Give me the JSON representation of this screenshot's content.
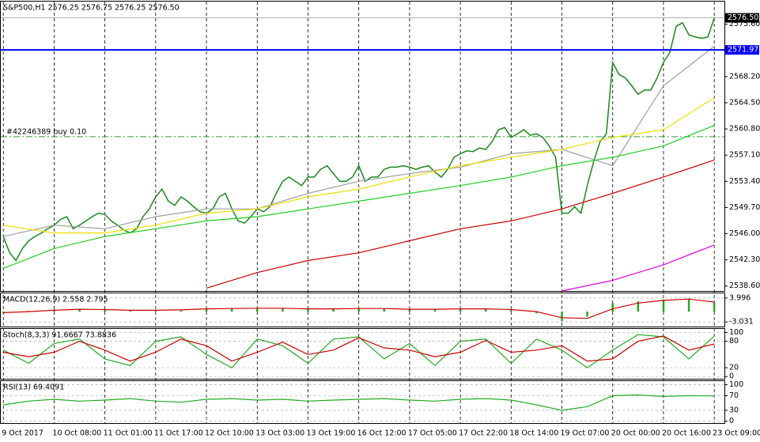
{
  "chart_data": [
    {
      "type": "line",
      "title": "S&P500,H1  2576.25 2576.75 2576.25 2576.50",
      "xlim": [
        -0.4,
        113.6
      ],
      "ylim": [
        2537.9,
        2578.8
      ],
      "xticks": [
        {
          "value": 0,
          "label": "9 Oct 2017"
        },
        {
          "value": 8,
          "label": "10 Oct 08:00"
        },
        {
          "value": 16,
          "label": "11 Oct 01:00"
        },
        {
          "value": 24,
          "label": "11 Oct 17:00"
        },
        {
          "value": 32,
          "label": "12 Oct 10:00"
        },
        {
          "value": 40,
          "label": "13 Oct 03:00"
        },
        {
          "value": 48,
          "label": "13 Oct 19:00"
        },
        {
          "value": 56,
          "label": "16 Oct 12:00"
        },
        {
          "value": 64,
          "label": "17 Oct 05:00"
        },
        {
          "value": 72,
          "label": "17 Oct 22:00"
        },
        {
          "value": 80,
          "label": "18 Oct 14:00"
        },
        {
          "value": 88,
          "label": "19 Oct 07:00"
        },
        {
          "value": 96,
          "label": "20 Oct 00:00"
        },
        {
          "value": 104,
          "label": "20 Oct 16:00"
        },
        {
          "value": 112,
          "label": "23 Oct 09:00"
        }
      ],
      "yticks": [
        {
          "value": 2575.6,
          "label": "2575.60"
        },
        {
          "value": 2568.2,
          "label": "2568.20"
        },
        {
          "value": 2564.5,
          "label": "2564.50"
        },
        {
          "value": 2560.8,
          "label": "2560.80"
        },
        {
          "value": 2557.1,
          "label": "2557.10"
        },
        {
          "value": 2553.4,
          "label": "2553.40"
        },
        {
          "value": 2549.7,
          "label": "2549.70"
        },
        {
          "value": 2546.0,
          "label": "2546.00"
        },
        {
          "value": 2542.3,
          "label": "2542.30"
        },
        {
          "value": 2538.6,
          "label": "2538.60"
        }
      ],
      "levels": [
        {
          "value": 2571.97,
          "label": "2571.97",
          "color": "#0000ff"
        },
        {
          "value": 2576.5,
          "label": "2576.50",
          "color": "#000000"
        }
      ],
      "order": {
        "value": 2559.7,
        "text": "#42246389 buy 0.10",
        "color": "#2e9e2e"
      },
      "series": [
        {
          "color": "#1a8a1a",
          "values": [
            2545.6,
            2543.3,
            2542.2,
            2543.9,
            2545.0,
            2545.6,
            2546.1,
            2546.7,
            2547.2,
            2548.0,
            2548.4,
            2546.7,
            2547.2,
            2547.8,
            2548.4,
            2548.9,
            2548.7,
            2547.8,
            2547.2,
            2546.5,
            2546.1,
            2546.7,
            2548.4,
            2549.5,
            2551.2,
            2552.3,
            2550.6,
            2550.0,
            2551.2,
            2550.6,
            2549.8,
            2549.1,
            2548.9,
            2549.5,
            2551.2,
            2551.7,
            2549.5,
            2547.8,
            2547.5,
            2548.4,
            2549.5,
            2549.1,
            2549.8,
            2551.7,
            2553.4,
            2554.0,
            2553.4,
            2552.8,
            2554.0,
            2554.0,
            2555.1,
            2555.6,
            2554.5,
            2553.4,
            2553.4,
            2554.0,
            2555.6,
            2553.4,
            2554.0,
            2554.0,
            2555.1,
            2555.4,
            2555.4,
            2555.6,
            2555.4,
            2555.1,
            2555.4,
            2555.6,
            2554.7,
            2554.0,
            2555.1,
            2556.8,
            2557.3,
            2557.7,
            2557.6,
            2558.1,
            2557.9,
            2559.0,
            2560.7,
            2561.0,
            2559.6,
            2560.1,
            2560.7,
            2559.9,
            2560.1,
            2559.6,
            2558.4,
            2556.8,
            2548.9,
            2548.9,
            2549.8,
            2548.9,
            2552.8,
            2556.2,
            2559.0,
            2560.1,
            2570.2,
            2568.5,
            2568.0,
            2566.9,
            2565.7,
            2566.3,
            2566.3,
            2568.0,
            2570.2,
            2571.6,
            2575.3,
            2575.8,
            2574.1,
            2573.8,
            2573.6,
            2573.8,
            2576.5
          ]
        },
        {
          "color": "#a0a0a0",
          "x": [
            0,
            8,
            16,
            24,
            32,
            40,
            48,
            56,
            64,
            72,
            80,
            88,
            96,
            104,
            112
          ],
          "values": [
            2545.6,
            2547.2,
            2546.7,
            2548.4,
            2549.5,
            2549.5,
            2551.7,
            2553.4,
            2554.5,
            2555.4,
            2557.3,
            2557.9,
            2555.6,
            2566.9,
            2572.5
          ]
        },
        {
          "color": "#f0e000",
          "x": [
            0,
            8,
            16,
            24,
            32,
            40,
            48,
            56,
            64,
            72,
            80,
            88,
            96,
            104,
            112
          ],
          "values": [
            2547.2,
            2546.1,
            2546.1,
            2547.2,
            2548.9,
            2549.5,
            2551.2,
            2552.3,
            2554.0,
            2555.6,
            2556.8,
            2557.9,
            2559.6,
            2560.7,
            2565.2
          ]
        },
        {
          "color": "#22cc22",
          "x": [
            0,
            8,
            16,
            24,
            32,
            40,
            48,
            56,
            64,
            72,
            80,
            88,
            96,
            104,
            112
          ],
          "values": [
            2541.1,
            2543.9,
            2545.6,
            2546.7,
            2547.8,
            2548.4,
            2549.5,
            2550.6,
            2551.7,
            2552.8,
            2554.0,
            2555.6,
            2556.8,
            2558.4,
            2561.3
          ]
        },
        {
          "color": "#cc0000",
          "x": [
            0,
            8,
            16,
            24,
            32,
            40,
            48,
            56,
            64,
            72,
            80,
            88,
            96,
            104,
            112
          ],
          "values": [
            null,
            null,
            null,
            null,
            2538.3,
            2540.5,
            2542.2,
            2543.3,
            2545.0,
            2546.7,
            2547.8,
            2549.5,
            2551.7,
            2554.0,
            2556.4
          ]
        },
        {
          "color": "#dd00dd",
          "x": [
            0,
            8,
            16,
            24,
            32,
            40,
            48,
            56,
            64,
            72,
            80,
            88,
            96,
            104,
            112
          ],
          "values": [
            null,
            null,
            null,
            null,
            null,
            null,
            null,
            null,
            null,
            null,
            null,
            2537.9,
            2539.4,
            2541.6,
            2544.4
          ]
        }
      ]
    },
    {
      "type": "macd",
      "title": "MACD(12,26,9) 2.558 2.795",
      "ylim": [
        -4.39,
        5.36
      ],
      "yticks": [
        3.996,
        -3.031
      ],
      "x": [
        0,
        4,
        8,
        12,
        16,
        20,
        24,
        28,
        32,
        36,
        40,
        44,
        48,
        52,
        56,
        60,
        64,
        68,
        72,
        76,
        80,
        84,
        88,
        92,
        96,
        100,
        104,
        108,
        112
      ],
      "series": [
        {
          "style": "histogram",
          "color": "#22aa22",
          "values": [
            -0.5,
            0.2,
            0.6,
            0.8,
            0.5,
            0.3,
            0.4,
            0.6,
            0.9,
            1.0,
            1.1,
            0.9,
            0.7,
            0.8,
            1.0,
            0.8,
            0.6,
            0.7,
            0.9,
            0.8,
            0.5,
            -0.5,
            -2.8,
            -1.5,
            2.5,
            3.0,
            3.6,
            3.8,
            2.6
          ]
        },
        {
          "color": "#cc0000",
          "values": [
            -0.3,
            0,
            0.4,
            0.7,
            0.6,
            0.4,
            0.4,
            0.5,
            0.8,
            0.9,
            1.0,
            1.0,
            0.8,
            0.8,
            0.9,
            0.9,
            0.7,
            0.7,
            0.8,
            0.8,
            0.6,
            0,
            -1.8,
            -2.0,
            0.8,
            2.5,
            3.3,
            3.7,
            2.8
          ]
        }
      ]
    },
    {
      "type": "line",
      "title": "Stoch(8,3,3) 91.6667 73.8836",
      "ylim": [
        -5,
        108
      ],
      "yticks": [
        100,
        80,
        20,
        0
      ],
      "x": [
        0,
        4,
        8,
        12,
        16,
        20,
        24,
        28,
        32,
        36,
        40,
        44,
        48,
        52,
        56,
        60,
        64,
        68,
        72,
        76,
        80,
        84,
        88,
        92,
        96,
        100,
        104,
        108,
        112
      ],
      "series": [
        {
          "color": "#22aa22",
          "values": [
            60,
            30,
            75,
            85,
            40,
            25,
            80,
            90,
            50,
            20,
            85,
            70,
            30,
            85,
            90,
            40,
            75,
            25,
            80,
            85,
            30,
            85,
            60,
            20,
            60,
            95,
            90,
            40,
            91.6667
          ]
        },
        {
          "color": "#cc0000",
          "values": [
            55,
            45,
            55,
            80,
            60,
            35,
            55,
            85,
            70,
            35,
            55,
            78,
            50,
            60,
            88,
            65,
            60,
            45,
            55,
            82,
            55,
            60,
            70,
            35,
            40,
            80,
            92,
            60,
            73.8836
          ]
        }
      ]
    },
    {
      "type": "line",
      "title": "RSI(13) 69.4091",
      "ylim": [
        -5,
        110
      ],
      "yticks": [
        100,
        70,
        30,
        0
      ],
      "x": [
        0,
        4,
        8,
        12,
        16,
        20,
        24,
        28,
        32,
        36,
        40,
        44,
        48,
        52,
        56,
        60,
        64,
        68,
        72,
        76,
        80,
        84,
        88,
        92,
        96,
        100,
        104,
        108,
        112
      ],
      "series": [
        {
          "color": "#22aa22",
          "values": [
            45,
            55,
            60,
            55,
            58,
            62,
            55,
            52,
            60,
            62,
            58,
            60,
            55,
            58,
            60,
            62,
            58,
            55,
            60,
            62,
            58,
            45,
            30,
            40,
            70,
            72,
            68,
            70,
            69.4091
          ]
        }
      ]
    }
  ]
}
